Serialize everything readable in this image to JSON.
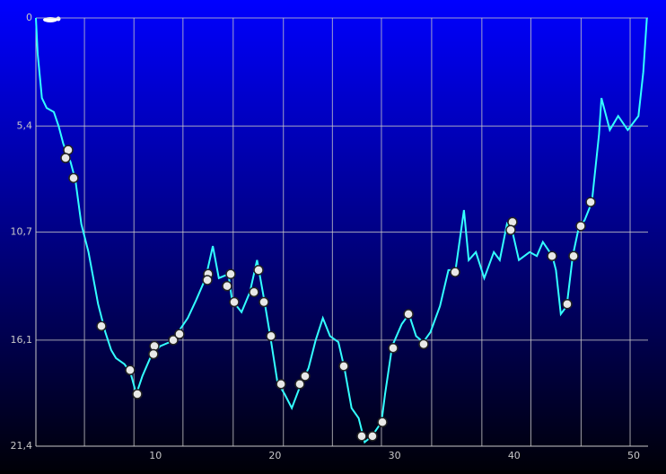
{
  "chart_data": {
    "type": "line",
    "x": [
      0,
      0.15,
      0.5,
      0.9,
      1.5,
      1.9,
      2.3,
      2.9,
      3.3,
      3.8,
      4.4,
      5.2,
      5.8,
      6.3,
      6.7,
      7.4,
      7.9,
      8.4,
      8.9,
      9.7,
      10.4,
      11.2,
      11.9,
      12.7,
      13.4,
      14.2,
      14.8,
      15.3,
      16.1,
      16.4,
      17.2,
      17.9,
      18.5,
      19.1,
      19.6,
      20.2,
      20.8,
      21.4,
      22.1,
      22.8,
      23.4,
      24.0,
      24.6,
      25.3,
      25.8,
      26.4,
      27.0,
      27.5,
      28.1,
      28.9,
      29.2,
      29.8,
      30.6,
      31.2,
      31.8,
      32.4,
      33.0,
      33.8,
      34.5,
      35.1,
      35.8,
      36.2,
      36.8,
      37.5,
      38.3,
      38.8,
      39.4,
      39.9,
      40.4,
      41.3,
      41.9,
      42.4,
      43.2,
      43.5,
      43.9,
      44.4,
      44.9,
      45.4,
      45.9,
      46.5,
      47.1,
      47.3,
      48.0,
      48.7,
      49.5,
      50.4,
      50.8,
      51.1
    ],
    "values": [
      0,
      1.8,
      4.0,
      4.5,
      4.7,
      5.4,
      6.3,
      7.2,
      8.1,
      10.3,
      11.7,
      14.3,
      15.7,
      16.6,
      17.0,
      17.3,
      17.7,
      18.8,
      17.9,
      16.8,
      16.4,
      16.2,
      15.7,
      15.0,
      14.1,
      13.0,
      11.4,
      13.0,
      12.8,
      14.1,
      14.7,
      13.7,
      12.1,
      14.1,
      15.9,
      18.2,
      18.8,
      19.5,
      18.4,
      17.5,
      16.1,
      15.0,
      15.9,
      16.2,
      17.5,
      19.5,
      20.0,
      21.2,
      20.9,
      20.2,
      18.8,
      16.4,
      15.3,
      14.8,
      15.9,
      16.2,
      15.7,
      14.4,
      12.6,
      12.6,
      9.6,
      12.1,
      11.7,
      13.0,
      11.7,
      12.1,
      10.3,
      10.8,
      12.1,
      11.7,
      11.9,
      11.2,
      11.9,
      12.6,
      14.8,
      14.4,
      11.9,
      10.5,
      10.1,
      9.2,
      5.8,
      4.0,
      5.6,
      4.9,
      5.6,
      4.9,
      2.7,
      0
    ],
    "color": "#33ffff",
    "events": {
      "x": [
        2.7,
        2.48,
        3.15,
        5.48,
        7.88,
        8.48,
        9.91,
        9.83,
        11.49,
        12.01,
        14.41,
        14.34,
        16.29,
        15.99,
        16.59,
        18.24,
        18.62,
        19.07,
        19.67,
        20.5,
        22.07,
        22.52,
        25.75,
        27.25,
        28.15,
        28.98,
        29.88,
        31.16,
        32.43,
        35.06,
        39.86,
        39.71,
        43.17,
        44.44,
        44.97,
        45.57,
        46.4
      ],
      "values": [
        6.6,
        7.0,
        8.0,
        15.4,
        17.6,
        18.8,
        16.4,
        16.8,
        16.1,
        15.8,
        12.8,
        13.1,
        12.8,
        13.4,
        14.2,
        13.7,
        12.6,
        14.2,
        15.9,
        18.3,
        18.3,
        17.9,
        17.4,
        20.9,
        20.9,
        20.2,
        16.5,
        14.8,
        16.3,
        12.7,
        10.2,
        10.6,
        11.9,
        14.3,
        11.9,
        10.4,
        9.2
      ]
    },
    "xlim": [
      0,
      51.2
    ],
    "xticks": [
      10,
      20,
      30,
      40,
      50
    ],
    "xgrid": [
      4.06,
      8.2,
      12.3,
      16.5,
      20.7,
      24.8,
      28.9,
      33.1,
      37.3,
      41.4,
      45.6,
      49.7
    ],
    "ylim": [
      0,
      21.4
    ],
    "y_inverted": true,
    "yticks": [
      0,
      {
        "value": 5.4,
        "label": "5,4"
      },
      {
        "value": 10.7,
        "label": "10,7"
      },
      {
        "value": 16.1,
        "label": "16,1"
      },
      {
        "value": 21.4,
        "label": "21,4"
      }
    ],
    "grid": true
  }
}
